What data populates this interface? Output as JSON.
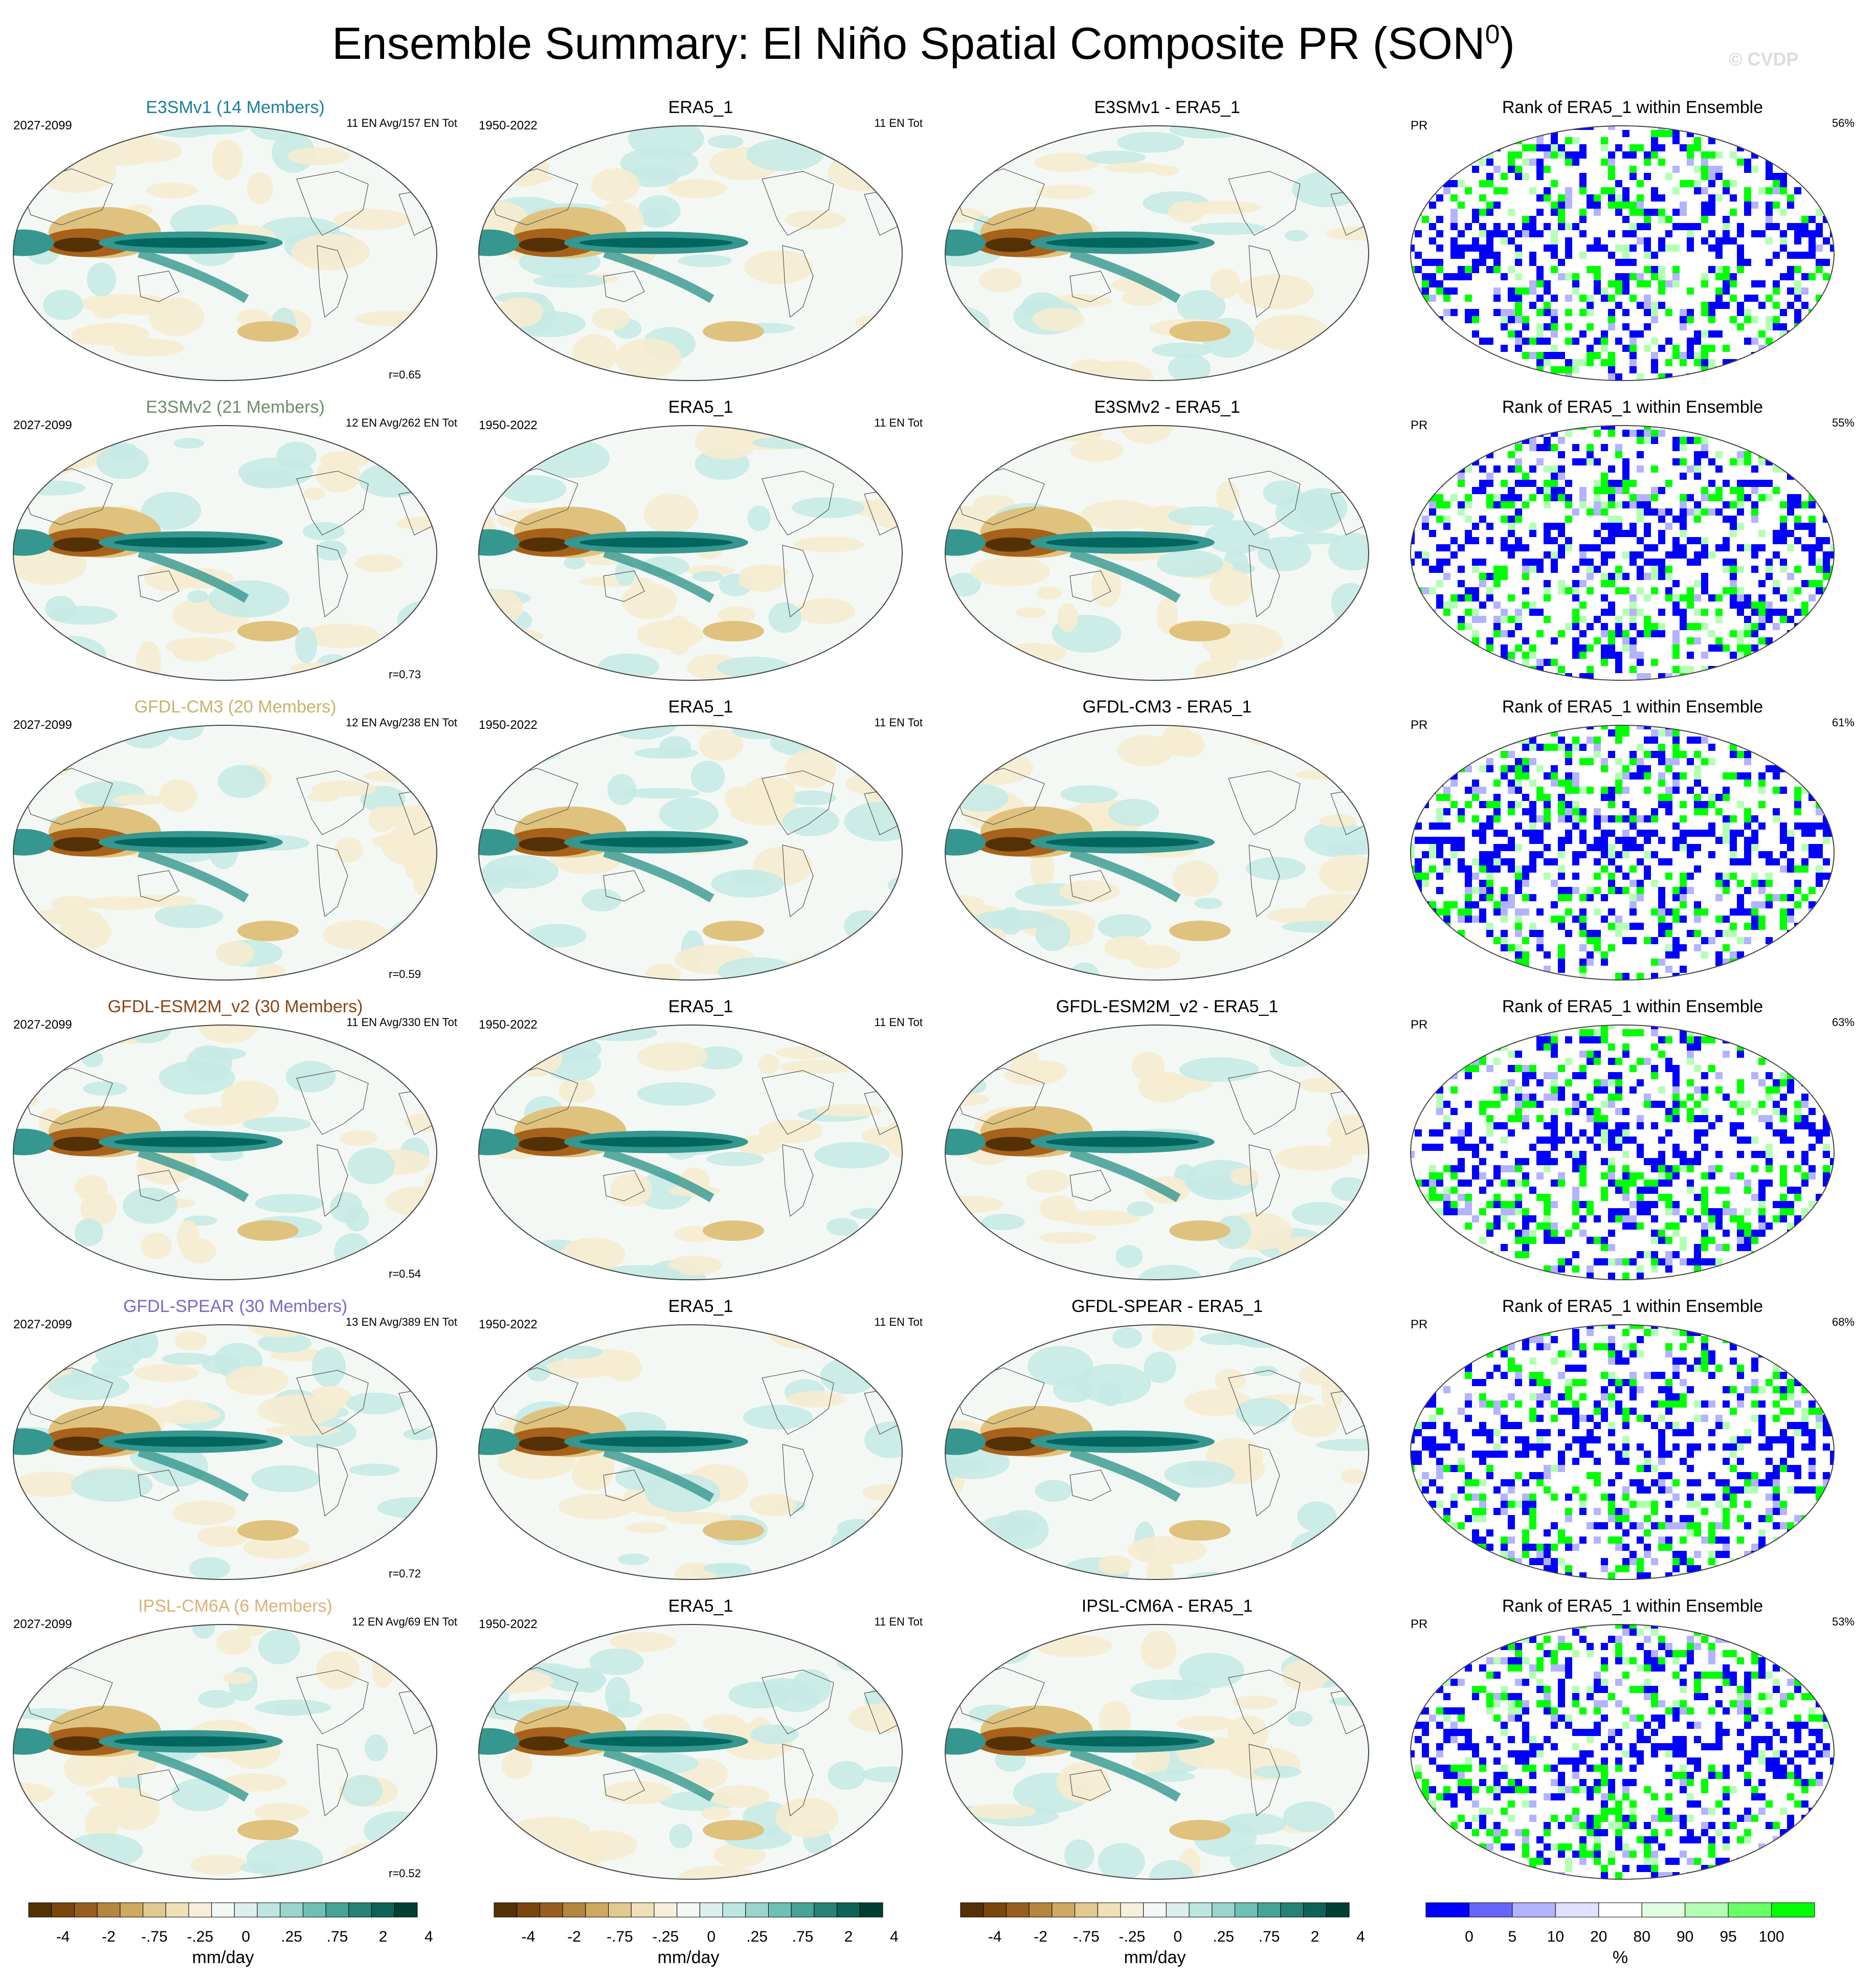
{
  "title": "Ensemble Summary: El Niño Spatial Composite PR (SON",
  "title_superscript": "0",
  "title_close": ")",
  "watermark": "© CVDP",
  "colors": {
    "brown_dark": "#543005",
    "brown": "#a6611a",
    "tan": "#dfc27d",
    "cream": "#f6ecd0",
    "near_white": "#f4f8f5",
    "teal_light": "#c7eae5",
    "teal": "#35978f",
    "teal_dark": "#01665e",
    "rank_blue": "#0000ff",
    "rank_green": "#00ff00"
  },
  "chart_data": {
    "type": "heatmap",
    "layout": "6 rows x 4 columns of global map panels",
    "rows": [
      {
        "model": "E3SMv1 (14 Members)",
        "model_color": "#1a7f9c",
        "model_years": "2027-2099",
        "model_info": "11 EN Avg/157 EN Tot",
        "r": "r=0.65",
        "obs_title": "ERA5_1",
        "obs_years": "1950-2022",
        "obs_info": "11 EN Tot",
        "diff_title": "E3SMv1 - ERA5_1",
        "rank_title": "Rank of ERA5_1 within Ensemble",
        "rank_var": "PR",
        "rank_pct": "56%"
      },
      {
        "model": "E3SMv2 (21 Members)",
        "model_color": "#6a8f6a",
        "model_years": "2027-2099",
        "model_info": "12 EN Avg/262 EN Tot",
        "r": "r=0.73",
        "obs_title": "ERA5_1",
        "obs_years": "1950-2022",
        "obs_info": "11 EN Tot",
        "diff_title": "E3SMv2 - ERA5_1",
        "rank_title": "Rank of ERA5_1 within Ensemble",
        "rank_var": "PR",
        "rank_pct": "55%"
      },
      {
        "model": "GFDL-CM3 (20 Members)",
        "model_color": "#c8b36a",
        "model_years": "2027-2099",
        "model_info": "12 EN Avg/238 EN Tot",
        "r": "r=0.59",
        "obs_title": "ERA5_1",
        "obs_years": "1950-2022",
        "obs_info": "11 EN Tot",
        "diff_title": "GFDL-CM3 - ERA5_1",
        "rank_title": "Rank of ERA5_1 within Ensemble",
        "rank_var": "PR",
        "rank_pct": "61%"
      },
      {
        "model": "GFDL-ESM2M_v2 (30 Members)",
        "model_color": "#8b4513",
        "model_years": "2027-2099",
        "model_info": "11 EN Avg/330 EN Tot",
        "r": "r=0.54",
        "obs_title": "ERA5_1",
        "obs_years": "1950-2022",
        "obs_info": "11 EN Tot",
        "diff_title": "GFDL-ESM2M_v2 - ERA5_1",
        "rank_title": "Rank of ERA5_1 within Ensemble",
        "rank_var": "PR",
        "rank_pct": "63%"
      },
      {
        "model": "GFDL-SPEAR (30 Members)",
        "model_color": "#7b68c8",
        "model_years": "2027-2099",
        "model_info": "13 EN Avg/389 EN Tot",
        "r": "r=0.72",
        "obs_title": "ERA5_1",
        "obs_years": "1950-2022",
        "obs_info": "11 EN Tot",
        "diff_title": "GFDL-SPEAR - ERA5_1",
        "rank_title": "Rank of ERA5_1 within Ensemble",
        "rank_var": "PR",
        "rank_pct": "68%"
      },
      {
        "model": "IPSL-CM6A (6 Members)",
        "model_color": "#d9b27a",
        "model_years": "2027-2099",
        "model_info": "12 EN Avg/69 EN Tot",
        "r": "r=0.52",
        "obs_title": "ERA5_1",
        "obs_years": "1950-2022",
        "obs_info": "11 EN Tot",
        "diff_title": "IPSL-CM6A - ERA5_1",
        "rank_title": "Rank of ERA5_1 within Ensemble",
        "rank_var": "PR",
        "rank_pct": "53%"
      }
    ],
    "colorbar_pr": {
      "labels": [
        "-4",
        "-2",
        "-.75",
        "-.25",
        "0",
        ".25",
        ".75",
        "2",
        "4"
      ],
      "unit": "mm/day",
      "colors": [
        "#543005",
        "#7a460d",
        "#985e1e",
        "#b5863d",
        "#cfa95f",
        "#e1c98f",
        "#efe0b8",
        "#f7efdc",
        "#f4f8f5",
        "#dbf0ee",
        "#bde6e0",
        "#99d5cd",
        "#6ec0b5",
        "#45a397",
        "#268277",
        "#0d6257",
        "#013f35"
      ]
    },
    "colorbar_rank": {
      "labels": [
        "0",
        "5",
        "10",
        "20",
        "80",
        "90",
        "95",
        "100"
      ],
      "unit": "%",
      "colors": [
        "#0000ff",
        "#6666ff",
        "#b3b3ff",
        "#e0e0ff",
        "#ffffff",
        "#e0ffe0",
        "#b3ffb3",
        "#66ff66",
        "#00ff00"
      ]
    }
  }
}
